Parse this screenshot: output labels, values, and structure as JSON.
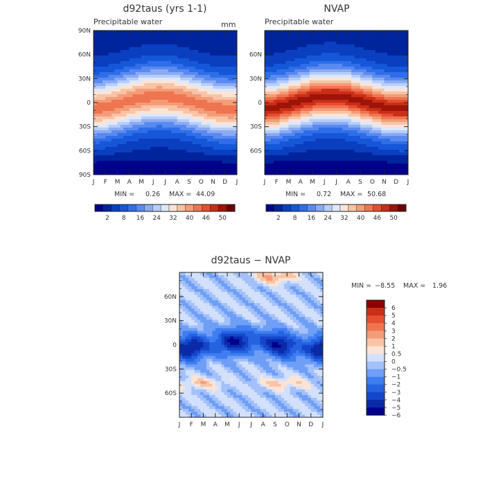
{
  "palette": [
    "#00008b",
    "#00249c",
    "#0a3fc0",
    "#1656d8",
    "#2f6ee8",
    "#5a8af0",
    "#8aabf4",
    "#b8cdf8",
    "#dde8fc",
    "#fbe4d6",
    "#f8c3a6",
    "#f49c78",
    "#ef7550",
    "#e44f2f",
    "#c92e18",
    "#9e1408",
    "#6b0000"
  ],
  "diff_palette": [
    "#00008b",
    "#0a2aa8",
    "#1446cc",
    "#2563e0",
    "#3e7ef0",
    "#6e9ef6",
    "#a3c0f9",
    "#d2e0fc",
    "#fbe4d6",
    "#f8c3a6",
    "#f49c78",
    "#ef7550",
    "#e44f2f",
    "#c92e18",
    "#8b0000"
  ],
  "chart_data": [
    {
      "type": "heatmap",
      "title": "d92taus (yrs 1-1)",
      "subtitle": "Precipitable water",
      "units": "mm",
      "x_ticks": [
        "J",
        "F",
        "M",
        "A",
        "M",
        "J",
        "J",
        "A",
        "S",
        "O",
        "N",
        "D",
        "J"
      ],
      "y_ticks": [
        "90N",
        "60N",
        "30N",
        "0",
        "30S",
        "60S",
        "90S"
      ],
      "min_label": "MIN =",
      "min_value": "0.26",
      "max_label": "MAX =",
      "max_value": "44.09",
      "min": 0.26,
      "max": 44.09,
      "colorbar_labels": [
        "2",
        "8",
        "16",
        "24",
        "32",
        "40",
        "46",
        "50"
      ],
      "colorbar_levels": 17
    },
    {
      "type": "heatmap",
      "title": "NVAP",
      "subtitle": "Precipitable water",
      "x_ticks": [
        "J",
        "F",
        "M",
        "A",
        "M",
        "J",
        "J",
        "A",
        "S",
        "O",
        "N",
        "D",
        "J"
      ],
      "y_ticks": [
        "60N",
        "30N",
        "0",
        "30S",
        "60S"
      ],
      "min_label": "MIN =",
      "min_value": "0.72",
      "max_label": "MAX =",
      "max_value": "50.68",
      "min": 0.72,
      "max": 50.68,
      "colorbar_labels": [
        "2",
        "8",
        "16",
        "24",
        "32",
        "40",
        "46",
        "50"
      ],
      "colorbar_levels": 17
    },
    {
      "type": "heatmap",
      "title": "d92taus − NVAP",
      "x_ticks": [
        "J",
        "F",
        "M",
        "A",
        "M",
        "J",
        "J",
        "A",
        "S",
        "O",
        "N",
        "D",
        "J"
      ],
      "y_ticks": [
        "60N",
        "30N",
        "0",
        "30S",
        "60S"
      ],
      "min_label": "MIN =",
      "min_value": "−8.55",
      "max_label": "MAX =",
      "max_value": "1.96",
      "min": -8.55,
      "max": 1.96,
      "colorbar_labels": [
        "6",
        "5",
        "4",
        "3",
        "2",
        "1",
        "0.5",
        "0",
        "−0.5",
        "−1",
        "−2",
        "−3",
        "−4",
        "−5",
        "−6"
      ]
    }
  ]
}
